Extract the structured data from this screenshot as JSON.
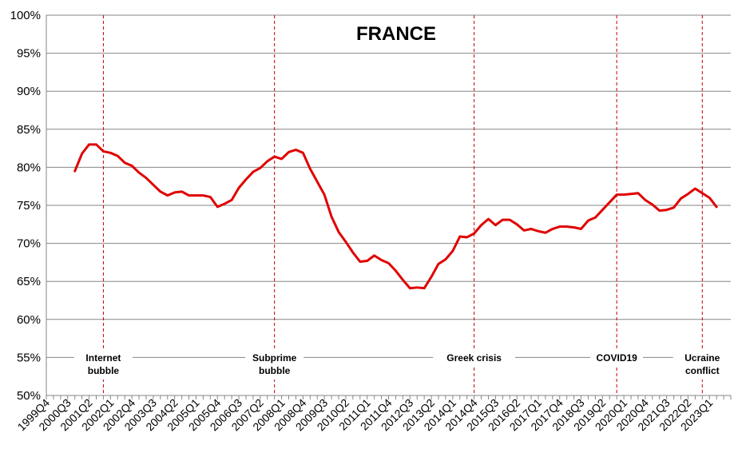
{
  "chart_data": {
    "type": "line",
    "title": "FRANCE",
    "xlabel": "",
    "ylabel": "",
    "ylim": [
      0.5,
      1.0
    ],
    "yticks": [
      "50%",
      "55%",
      "60%",
      "65%",
      "70%",
      "75%",
      "80%",
      "85%",
      "90%",
      "95%",
      "100%"
    ],
    "grid": "horizontal",
    "x_tick_labels": [
      "1999Q4",
      "2000Q3",
      "2001Q2",
      "2002Q1",
      "2002Q4",
      "2003Q3",
      "2004Q2",
      "2005Q1",
      "2005Q4",
      "2006Q3",
      "2007Q2",
      "2008Q1",
      "2008Q4",
      "2009Q3",
      "2010Q2",
      "2011Q1",
      "2011Q4",
      "2012Q3",
      "2013Q2",
      "2014Q1",
      "2014Q4",
      "2015Q3",
      "2016Q2",
      "2017Q1",
      "2017Q4",
      "2018Q3",
      "2019Q2",
      "2020Q1",
      "2020Q4",
      "2021Q3",
      "2022Q2",
      "2023Q1"
    ],
    "x_start": "1999Q4",
    "series": [
      {
        "name": "",
        "color": "#e00000",
        "x_start": "2000Q4",
        "values": [
          0.795,
          0.818,
          0.83,
          0.83,
          0.821,
          0.819,
          0.815,
          0.806,
          0.802,
          0.793,
          0.786,
          0.777,
          0.768,
          0.763,
          0.767,
          0.768,
          0.763,
          0.763,
          0.763,
          0.761,
          0.748,
          0.752,
          0.757,
          0.773,
          0.784,
          0.794,
          0.799,
          0.808,
          0.814,
          0.811,
          0.82,
          0.823,
          0.819,
          0.798,
          0.781,
          0.764,
          0.735,
          0.715,
          0.702,
          0.688,
          0.676,
          0.677,
          0.684,
          0.678,
          0.674,
          0.664,
          0.652,
          0.641,
          0.642,
          0.641,
          0.656,
          0.673,
          0.679,
          0.69,
          0.709,
          0.708,
          0.713,
          0.724,
          0.732,
          0.724,
          0.731,
          0.731,
          0.725,
          0.717,
          0.719,
          0.716,
          0.714,
          0.719,
          0.722,
          0.722,
          0.721,
          0.719,
          0.73,
          0.734,
          0.744,
          0.754,
          0.764,
          0.764,
          0.765,
          0.766,
          0.757,
          0.751,
          0.743,
          0.744,
          0.747,
          0.759,
          0.765,
          0.772,
          0.766,
          0.76,
          0.748
        ]
      }
    ],
    "events": [
      {
        "label_lines": [
          "Internet",
          "bubble"
        ],
        "at": "2001Q4"
      },
      {
        "label_lines": [
          "Subprime",
          "bubble"
        ],
        "at": "2007Q4"
      },
      {
        "label_lines": [
          "Greek crisis"
        ],
        "at": "2014Q4"
      },
      {
        "label_lines": [
          "COVID19"
        ],
        "at": "2019Q4"
      },
      {
        "label_lines": [
          "Ucraine",
          "conflict"
        ],
        "at": "2022Q4"
      }
    ]
  }
}
